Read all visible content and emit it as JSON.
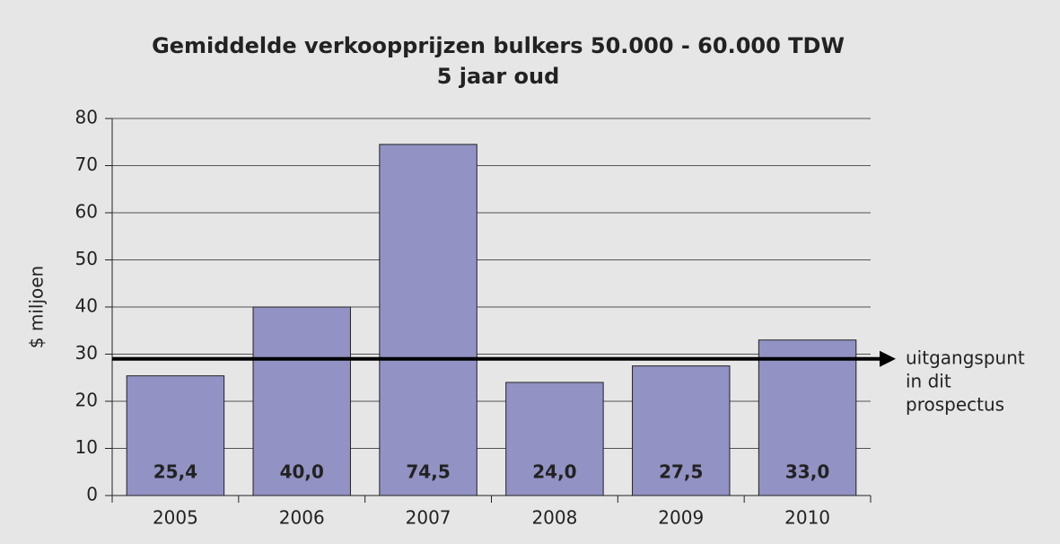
{
  "chart_data": {
    "type": "bar",
    "title": [
      "Gemiddelde verkoopprijzen bulkers 50.000 - 60.000 TDW",
      "5 jaar oud"
    ],
    "y_label": "$ miljoen",
    "categories": [
      "2005",
      "2006",
      "2007",
      "2008",
      "2009",
      "2010"
    ],
    "values": [
      25.4,
      40.0,
      74.5,
      24.0,
      27.5,
      33.0
    ],
    "value_labels": [
      "25,4",
      "40,0",
      "74,5",
      "24,0",
      "27,5",
      "33,0"
    ],
    "color": "#9292c4",
    "ylim": [
      0,
      80
    ],
    "yticks": [
      0,
      10,
      20,
      30,
      40,
      50,
      60,
      70,
      80
    ],
    "grid": true,
    "reference_line": {
      "value": 29,
      "label": [
        "uitgangspunt",
        "in dit",
        "prospectus"
      ]
    }
  }
}
